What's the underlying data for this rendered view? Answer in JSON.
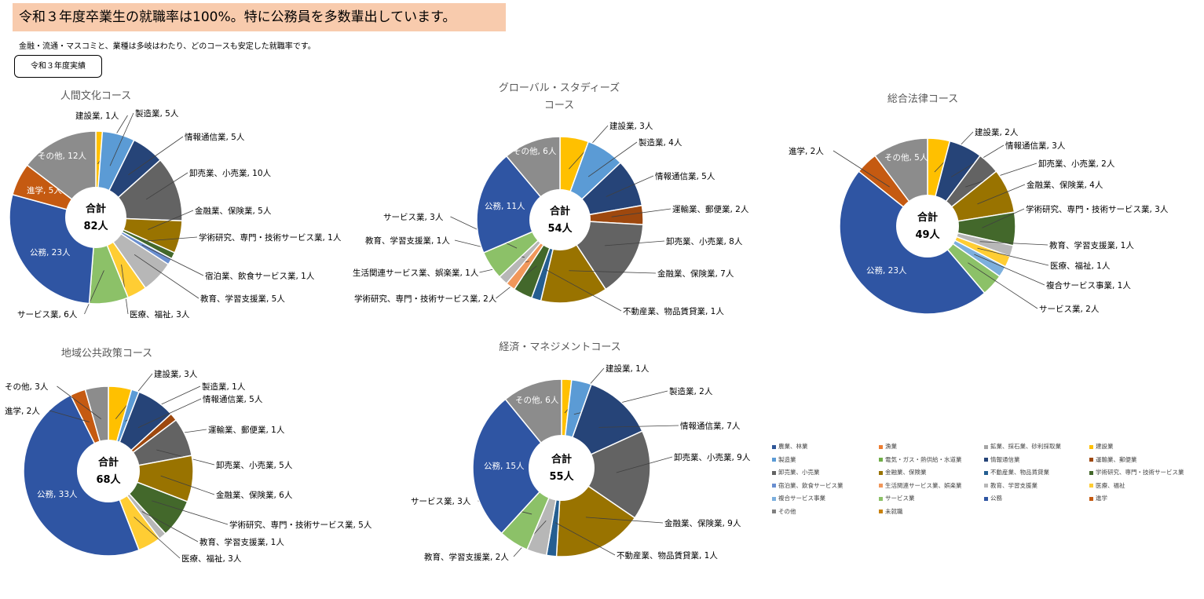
{
  "page": {
    "headline": "令和３年度卒業生の就職率は100%。特に公務員を多数輩出しています。",
    "subtext": "金融・流通・マスコミと、業種は多岐はわたり、どのコースも安定した就職率です。",
    "badge": "令和３年度実績"
  },
  "legend": [
    {
      "label": "農業、林業",
      "color": "#2e5597"
    },
    {
      "label": "漁業",
      "color": "#ed7d31"
    },
    {
      "label": "鉱業、採石業、砂利採取業",
      "color": "#a5a5a5"
    },
    {
      "label": "建設業",
      "color": "#ffc000"
    },
    {
      "label": "製造業",
      "color": "#5b9bd5"
    },
    {
      "label": "電気・ガス・熱供給・水道業",
      "color": "#70ad47"
    },
    {
      "label": "情報通信業",
      "color": "#264478"
    },
    {
      "label": "運輸業、郵便業",
      "color": "#9e480e"
    },
    {
      "label": "卸売業、小売業",
      "color": "#636363"
    },
    {
      "label": "金融業、保険業",
      "color": "#997300"
    },
    {
      "label": "不動産業、物品賃貸業",
      "color": "#255e91"
    },
    {
      "label": "学術研究、専門・技術サービス業",
      "color": "#43682b"
    },
    {
      "label": "宿泊業、飲食サービス業",
      "color": "#698ed0"
    },
    {
      "label": "生活関連サービス業、娯楽業",
      "color": "#f1975a"
    },
    {
      "label": "教育、学習支援業",
      "color": "#b7b7b7"
    },
    {
      "label": "医療、福祉",
      "color": "#ffcd33"
    },
    {
      "label": "複合サービス事業",
      "color": "#7cafdd"
    },
    {
      "label": "サービス業",
      "color": "#8cc168"
    },
    {
      "label": "公務",
      "color": "#2f55a3"
    },
    {
      "label": "進学",
      "color": "#c55a11"
    },
    {
      "label": "その他",
      "color": "#7f7f7f"
    },
    {
      "label": "未就職",
      "color": "#c9820c"
    }
  ],
  "chart_data": [
    {
      "type": "pie",
      "title": "人間文化コース",
      "center_label": "合計",
      "total": "82人",
      "slices": [
        {
          "label": "建設業",
          "value": 1,
          "color": "#ffc000",
          "text": "建設業, 1人"
        },
        {
          "label": "製造業",
          "value": 5,
          "color": "#5b9bd5",
          "text": "製造業, 5人"
        },
        {
          "label": "情報通信業",
          "value": 5,
          "color": "#264478",
          "text": "情報通信業, 5人"
        },
        {
          "label": "卸売業、小売業",
          "value": 10,
          "color": "#636363",
          "text": "卸売業、小売業, 10人"
        },
        {
          "label": "金融業、保険業",
          "value": 5,
          "color": "#997300",
          "text": "金融業、保険業, 5人"
        },
        {
          "label": "学術研究、専門・技術サービス業",
          "value": 1,
          "color": "#43682b",
          "text": "学術研究、専門・技術サービス業, 1人"
        },
        {
          "label": "宿泊業、飲食サービス業",
          "value": 1,
          "color": "#698ed0",
          "text": "宿泊業、飲食サービス業, 1人"
        },
        {
          "label": "教育、学習支援業",
          "value": 5,
          "color": "#b7b7b7",
          "text": "教育、学習支援業, 5人"
        },
        {
          "label": "医療、福祉",
          "value": 3,
          "color": "#ffcd33",
          "text": "医療、福祉, 3人"
        },
        {
          "label": "サービス業",
          "value": 6,
          "color": "#8cc168",
          "text": "サービス業, 6人"
        },
        {
          "label": "公務",
          "value": 23,
          "color": "#2f55a3",
          "text": "公務, 23人"
        },
        {
          "label": "進学",
          "value": 5,
          "color": "#c55a11",
          "text": "進学, 5人"
        },
        {
          "label": "その他",
          "value": 12,
          "color": "#8c8c8c",
          "text": "その他, 12人"
        }
      ]
    },
    {
      "type": "pie",
      "title": "グローバル・スタディーズ コース",
      "title_lines": [
        "グローバル・スタディーズ",
        "コース"
      ],
      "center_label": "合計",
      "total": "54人",
      "slices": [
        {
          "label": "建設業",
          "value": 3,
          "color": "#ffc000",
          "text": "建設業, 3人"
        },
        {
          "label": "製造業",
          "value": 4,
          "color": "#5b9bd5",
          "text": "製造業, 4人"
        },
        {
          "label": "情報通信業",
          "value": 5,
          "color": "#264478",
          "text": "情報通信業, 5人"
        },
        {
          "label": "運輸業、郵便業",
          "value": 2,
          "color": "#9e480e",
          "text": "運輸業、郵便業, 2人"
        },
        {
          "label": "卸売業、小売業",
          "value": 8,
          "color": "#636363",
          "text": "卸売業、小売業, 8人"
        },
        {
          "label": "金融業、保険業",
          "value": 7,
          "color": "#997300",
          "text": "金融業、保険業, 7人"
        },
        {
          "label": "不動産業、物品賃貸業",
          "value": 1,
          "color": "#255e91",
          "text": "不動産業、物品賃貸業, 1人"
        },
        {
          "label": "学術研究、専門・技術サービス業",
          "value": 2,
          "color": "#43682b",
          "text": "学術研究、専門・技術サービス業, 2人"
        },
        {
          "label": "生活関連サービス業、娯楽業",
          "value": 1,
          "color": "#f1975a",
          "text": "生活関連サービス業、娯楽業, 1人"
        },
        {
          "label": "教育、学習支援業",
          "value": 1,
          "color": "#b7b7b7",
          "text": "教育、学習支援業, 1人"
        },
        {
          "label": "サービス業",
          "value": 3,
          "color": "#8cc168",
          "text": "サービス業, 3人"
        },
        {
          "label": "公務",
          "value": 11,
          "color": "#2f55a3",
          "text": "公務, 11人"
        },
        {
          "label": "その他",
          "value": 6,
          "color": "#8c8c8c",
          "text": "その他, 6人"
        }
      ]
    },
    {
      "type": "pie",
      "title": "総合法律コース",
      "center_label": "合計",
      "total": "49人",
      "slices": [
        {
          "label": "建設業",
          "value": 2,
          "color": "#ffc000",
          "text": "建設業, 2人"
        },
        {
          "label": "情報通信業",
          "value": 3,
          "color": "#264478",
          "text": "情報通信業, 3人"
        },
        {
          "label": "卸売業、小売業",
          "value": 2,
          "color": "#636363",
          "text": "卸売業、小売業, 2人"
        },
        {
          "label": "金融業、保険業",
          "value": 4,
          "color": "#997300",
          "text": "金融業、保険業, 4人"
        },
        {
          "label": "学術研究、専門・技術サービス業",
          "value": 3,
          "color": "#43682b",
          "text": "学術研究、専門・技術サービス業, 3人"
        },
        {
          "label": "教育、学習支援業",
          "value": 1,
          "color": "#b7b7b7",
          "text": "教育、学習支援業, 1人"
        },
        {
          "label": "医療、福祉",
          "value": 1,
          "color": "#ffcd33",
          "text": "医療、福祉, 1人"
        },
        {
          "label": "複合サービス事業",
          "value": 1,
          "color": "#7cafdd",
          "text": "複合サービス事業, 1人"
        },
        {
          "label": "サービス業",
          "value": 2,
          "color": "#8cc168",
          "text": "サービス業, 2人"
        },
        {
          "label": "公務",
          "value": 23,
          "color": "#2f55a3",
          "text": "公務, 23人"
        },
        {
          "label": "進学",
          "value": 2,
          "color": "#c55a11",
          "text": "進学, 2人"
        },
        {
          "label": "その他",
          "value": 5,
          "color": "#8c8c8c",
          "text": "その他, 5人"
        }
      ]
    },
    {
      "type": "pie",
      "title": "地域公共政策コース",
      "center_label": "合計",
      "total": "68人",
      "slices": [
        {
          "label": "建設業",
          "value": 3,
          "color": "#ffc000",
          "text": "建設業, 3人"
        },
        {
          "label": "製造業",
          "value": 1,
          "color": "#5b9bd5",
          "text": "製造業, 1人"
        },
        {
          "label": "情報通信業",
          "value": 5,
          "color": "#264478",
          "text": "情報通信業, 5人"
        },
        {
          "label": "運輸業、郵便業",
          "value": 1,
          "color": "#9e480e",
          "text": "運輸業、郵便業, 1人"
        },
        {
          "label": "卸売業、小売業",
          "value": 5,
          "color": "#636363",
          "text": "卸売業、小売業, 5人"
        },
        {
          "label": "金融業、保険業",
          "value": 6,
          "color": "#997300",
          "text": "金融業、保険業, 6人"
        },
        {
          "label": "学術研究、専門・技術サービス業",
          "value": 5,
          "color": "#43682b",
          "text": "学術研究、専門・技術サービス業, 5人"
        },
        {
          "label": "教育、学習支援業",
          "value": 1,
          "color": "#b7b7b7",
          "text": "教育、学習支援業, 1人"
        },
        {
          "label": "医療、福祉",
          "value": 3,
          "color": "#ffcd33",
          "text": "医療、福祉, 3人"
        },
        {
          "label": "公務",
          "value": 33,
          "color": "#2f55a3",
          "text": "公務, 33人"
        },
        {
          "label": "進学",
          "value": 2,
          "color": "#c55a11",
          "text": "進学, 2人"
        },
        {
          "label": "その他",
          "value": 3,
          "color": "#8c8c8c",
          "text": "その他, 3人"
        }
      ]
    },
    {
      "type": "pie",
      "title": "経済・マネジメントコース",
      "center_label": "合計",
      "total": "55人",
      "slices": [
        {
          "label": "建設業",
          "value": 1,
          "color": "#ffc000",
          "text": "建設業, 1人"
        },
        {
          "label": "製造業",
          "value": 2,
          "color": "#5b9bd5",
          "text": "製造業, 2人"
        },
        {
          "label": "情報通信業",
          "value": 7,
          "color": "#264478",
          "text": "情報通信業, 7人"
        },
        {
          "label": "卸売業、小売業",
          "value": 9,
          "color": "#636363",
          "text": "卸売業、小売業, 9人"
        },
        {
          "label": "金融業、保険業",
          "value": 9,
          "color": "#997300",
          "text": "金融業、保険業, 9人"
        },
        {
          "label": "不動産業、物品賃貸業",
          "value": 1,
          "color": "#255e91",
          "text": "不動産業、物品賃貸業, 1人"
        },
        {
          "label": "教育、学習支援業",
          "value": 2,
          "color": "#b7b7b7",
          "text": "教育、学習支援業, 2人"
        },
        {
          "label": "サービス業",
          "value": 3,
          "color": "#8cc168",
          "text": "サービス業, 3人"
        },
        {
          "label": "公務",
          "value": 15,
          "color": "#2f55a3",
          "text": "公務, 15人"
        },
        {
          "label": "その他",
          "value": 6,
          "color": "#8c8c8c",
          "text": "その他, 6人"
        }
      ]
    }
  ]
}
